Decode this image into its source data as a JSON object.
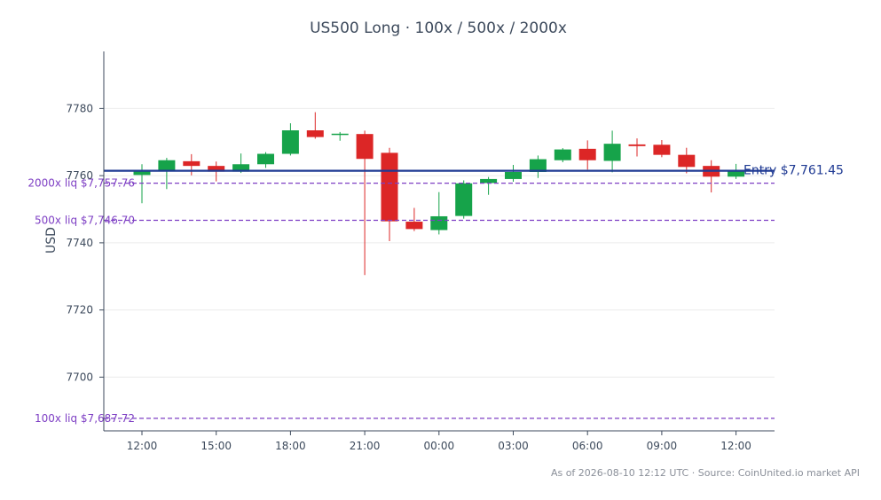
{
  "chart_data": {
    "type": "candlestick",
    "title": "US500 Long · 100x / 500x / 2000x",
    "ylabel": "USD",
    "xlabel": "",
    "ylim": [
      7684,
      7797
    ],
    "yticks": [
      7700,
      7720,
      7740,
      7760,
      7780
    ],
    "grid": "horizontal",
    "x_ticks": [
      {
        "label": "12:00",
        "index": 0
      },
      {
        "label": "15:00",
        "index": 3
      },
      {
        "label": "18:00",
        "index": 6
      },
      {
        "label": "21:00",
        "index": 9
      },
      {
        "label": "00:00",
        "index": 12
      },
      {
        "label": "03:00",
        "index": 15
      },
      {
        "label": "06:00",
        "index": 18
      },
      {
        "label": "09:00",
        "index": 21
      },
      {
        "label": "12:00",
        "index": 24
      }
    ],
    "candles": [
      {
        "t": "12:00",
        "o": 7760.2,
        "h": 7763.4,
        "l": 7751.8,
        "c": 7761.6
      },
      {
        "t": "13:00",
        "o": 7761.6,
        "h": 7765.3,
        "l": 7756.0,
        "c": 7764.6
      },
      {
        "t": "14:00",
        "o": 7764.3,
        "h": 7766.4,
        "l": 7760.1,
        "c": 7762.9
      },
      {
        "t": "15:00",
        "o": 7762.9,
        "h": 7764.2,
        "l": 7758.3,
        "c": 7761.2
      },
      {
        "t": "16:00",
        "o": 7761.2,
        "h": 7766.6,
        "l": 7760.8,
        "c": 7763.4
      },
      {
        "t": "17:00",
        "o": 7763.4,
        "h": 7767.0,
        "l": 7762.3,
        "c": 7766.5
      },
      {
        "t": "18:00",
        "o": 7766.5,
        "h": 7775.6,
        "l": 7766.0,
        "c": 7773.5
      },
      {
        "t": "19:00",
        "o": 7773.5,
        "h": 7778.9,
        "l": 7771.0,
        "c": 7771.5
      },
      {
        "t": "20:00",
        "o": 7772.3,
        "h": 7773.0,
        "l": 7770.4,
        "c": 7772.5
      },
      {
        "t": "21:00",
        "o": 7772.4,
        "h": 7773.4,
        "l": 7730.4,
        "c": 7765.0
      },
      {
        "t": "22:00",
        "o": 7766.8,
        "h": 7768.3,
        "l": 7740.5,
        "c": 7746.4
      },
      {
        "t": "23:00",
        "o": 7746.3,
        "h": 7750.4,
        "l": 7743.5,
        "c": 7744.1
      },
      {
        "t": "00:00",
        "o": 7743.8,
        "h": 7755.1,
        "l": 7742.5,
        "c": 7747.9
      },
      {
        "t": "01:00",
        "o": 7748.0,
        "h": 7758.6,
        "l": 7747.2,
        "c": 7757.7
      },
      {
        "t": "02:00",
        "o": 7757.8,
        "h": 7759.6,
        "l": 7754.3,
        "c": 7759.0
      },
      {
        "t": "03:00",
        "o": 7759.0,
        "h": 7763.2,
        "l": 7758.2,
        "c": 7761.1
      },
      {
        "t": "04:00",
        "o": 7761.1,
        "h": 7766.0,
        "l": 7759.3,
        "c": 7764.9
      },
      {
        "t": "05:00",
        "o": 7764.6,
        "h": 7768.2,
        "l": 7764.0,
        "c": 7767.8
      },
      {
        "t": "06:00",
        "o": 7768.0,
        "h": 7770.5,
        "l": 7761.8,
        "c": 7764.6
      },
      {
        "t": "07:00",
        "o": 7764.4,
        "h": 7773.4,
        "l": 7761.0,
        "c": 7769.5
      },
      {
        "t": "08:00",
        "o": 7769.3,
        "h": 7771.1,
        "l": 7765.7,
        "c": 7768.8
      },
      {
        "t": "09:00",
        "o": 7769.2,
        "h": 7770.6,
        "l": 7765.5,
        "c": 7766.2
      },
      {
        "t": "10:00",
        "o": 7766.2,
        "h": 7768.3,
        "l": 7760.7,
        "c": 7762.6
      },
      {
        "t": "11:00",
        "o": 7762.9,
        "h": 7764.6,
        "l": 7755.0,
        "c": 7759.7
      },
      {
        "t": "12:00",
        "o": 7759.7,
        "h": 7763.5,
        "l": 7759.0,
        "c": 7761.6
      }
    ],
    "entry": {
      "value": 7761.45,
      "label": "Entry $7,761.45",
      "color": "#1f3a93"
    },
    "liquidation_lines": [
      {
        "value": 7757.76,
        "label": "2000x liq $7,757.76"
      },
      {
        "value": 7746.7,
        "label": "500x liq $7,746.70"
      },
      {
        "value": 7687.72,
        "label": "100x liq $7,687.72"
      }
    ]
  },
  "colors": {
    "up": "#16a34a",
    "down": "#dc2626",
    "entry": "#1f3a93",
    "liquidation": "#7e3fc4",
    "axis": "#3d4a5c",
    "grid": "#ececec"
  },
  "footer": "As of 2026-08-10 12:12 UTC · Source: CoinUnited.io market API"
}
